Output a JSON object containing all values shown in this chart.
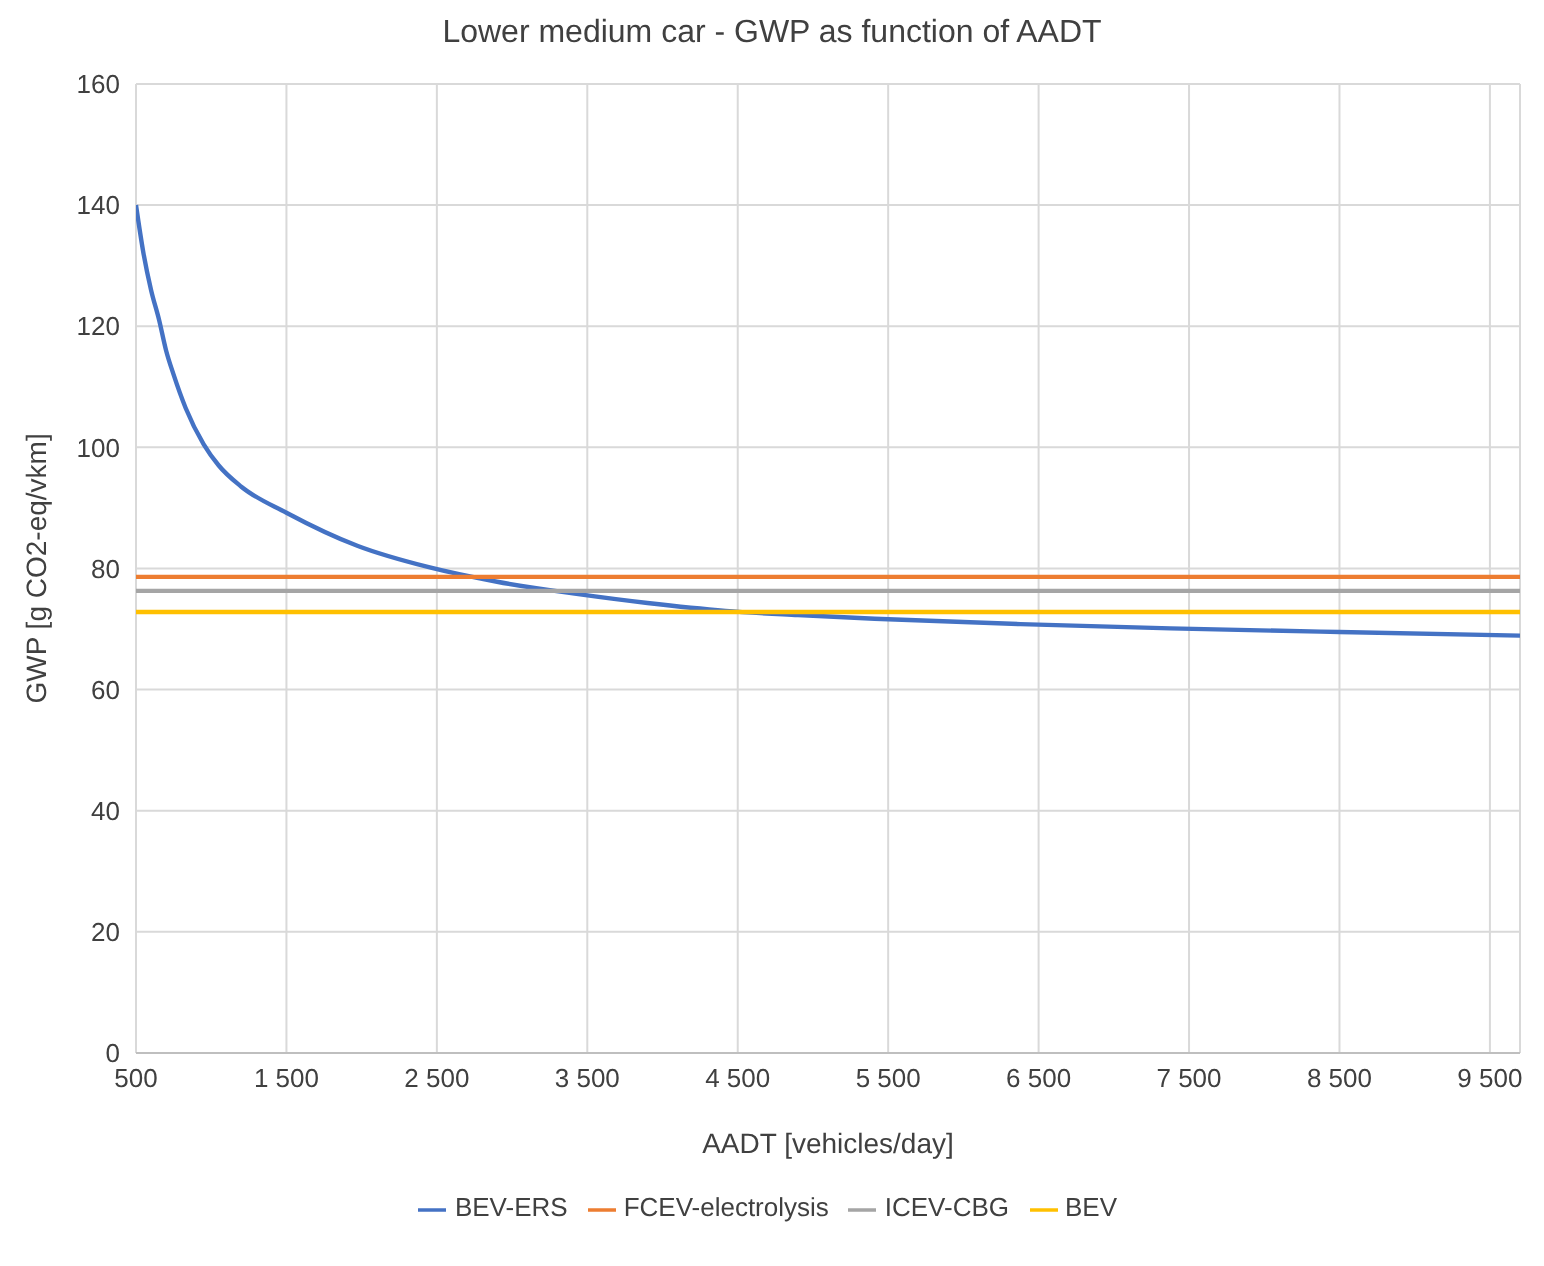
{
  "chart_data": {
    "type": "line",
    "title": "Lower medium car - GWP as function of AADT",
    "xlabel": "AADT [vehicles/day]",
    "ylabel": "GWP [g CO2-eq/vkm]",
    "xlim": [
      500,
      9700
    ],
    "xticks": [
      500,
      {
        "value": 1500,
        "label": "1 500"
      },
      {
        "value": 2500,
        "label": "2 500"
      },
      {
        "value": 3500,
        "label": "3 500"
      },
      {
        "value": 4500,
        "label": "4 500"
      },
      {
        "value": 5500,
        "label": "5 500"
      },
      {
        "value": 6500,
        "label": "6 500"
      },
      {
        "value": 7500,
        "label": "7 500"
      },
      {
        "value": 8500,
        "label": "8 500"
      },
      {
        "value": 9500,
        "label": "9 500"
      }
    ],
    "ylim": [
      0,
      160
    ],
    "yticks": [
      0,
      20,
      40,
      60,
      80,
      100,
      120,
      140,
      160
    ],
    "grid": true,
    "legend": "bottom",
    "marker": "none",
    "line_style": "solid",
    "series": [
      {
        "name": "BEV-ERS",
        "color": "#4472c4",
        "x": [
          500,
          550,
          600,
          654,
          700,
          750,
          830,
          950,
          1050,
          1200,
          1500,
          1975,
          2446,
          2900,
          3428,
          3900,
          4419,
          4900,
          5410,
          6380,
          7376,
          8500,
          9700
        ],
        "values": [
          140,
          132,
          126,
          121,
          116,
          112,
          106.5,
          100.5,
          97,
          93.5,
          89.2,
          83.7,
          80.2,
          77.8,
          75.8,
          74.3,
          73.0,
          72.3,
          71.7,
          70.8,
          70.1,
          69.5,
          68.9
        ]
      },
      {
        "name": "FCEV-electrolysis",
        "color": "#ed7d31",
        "x": [
          500,
          9700
        ],
        "values": [
          78.6,
          78.6
        ]
      },
      {
        "name": "ICEV-CBG",
        "color": "#a5a5a5",
        "x": [
          500,
          9700
        ],
        "values": [
          76.3,
          76.3
        ]
      },
      {
        "name": "BEV",
        "color": "#ffc000",
        "x": [
          500,
          9700
        ],
        "values": [
          72.8,
          72.8
        ]
      }
    ]
  }
}
